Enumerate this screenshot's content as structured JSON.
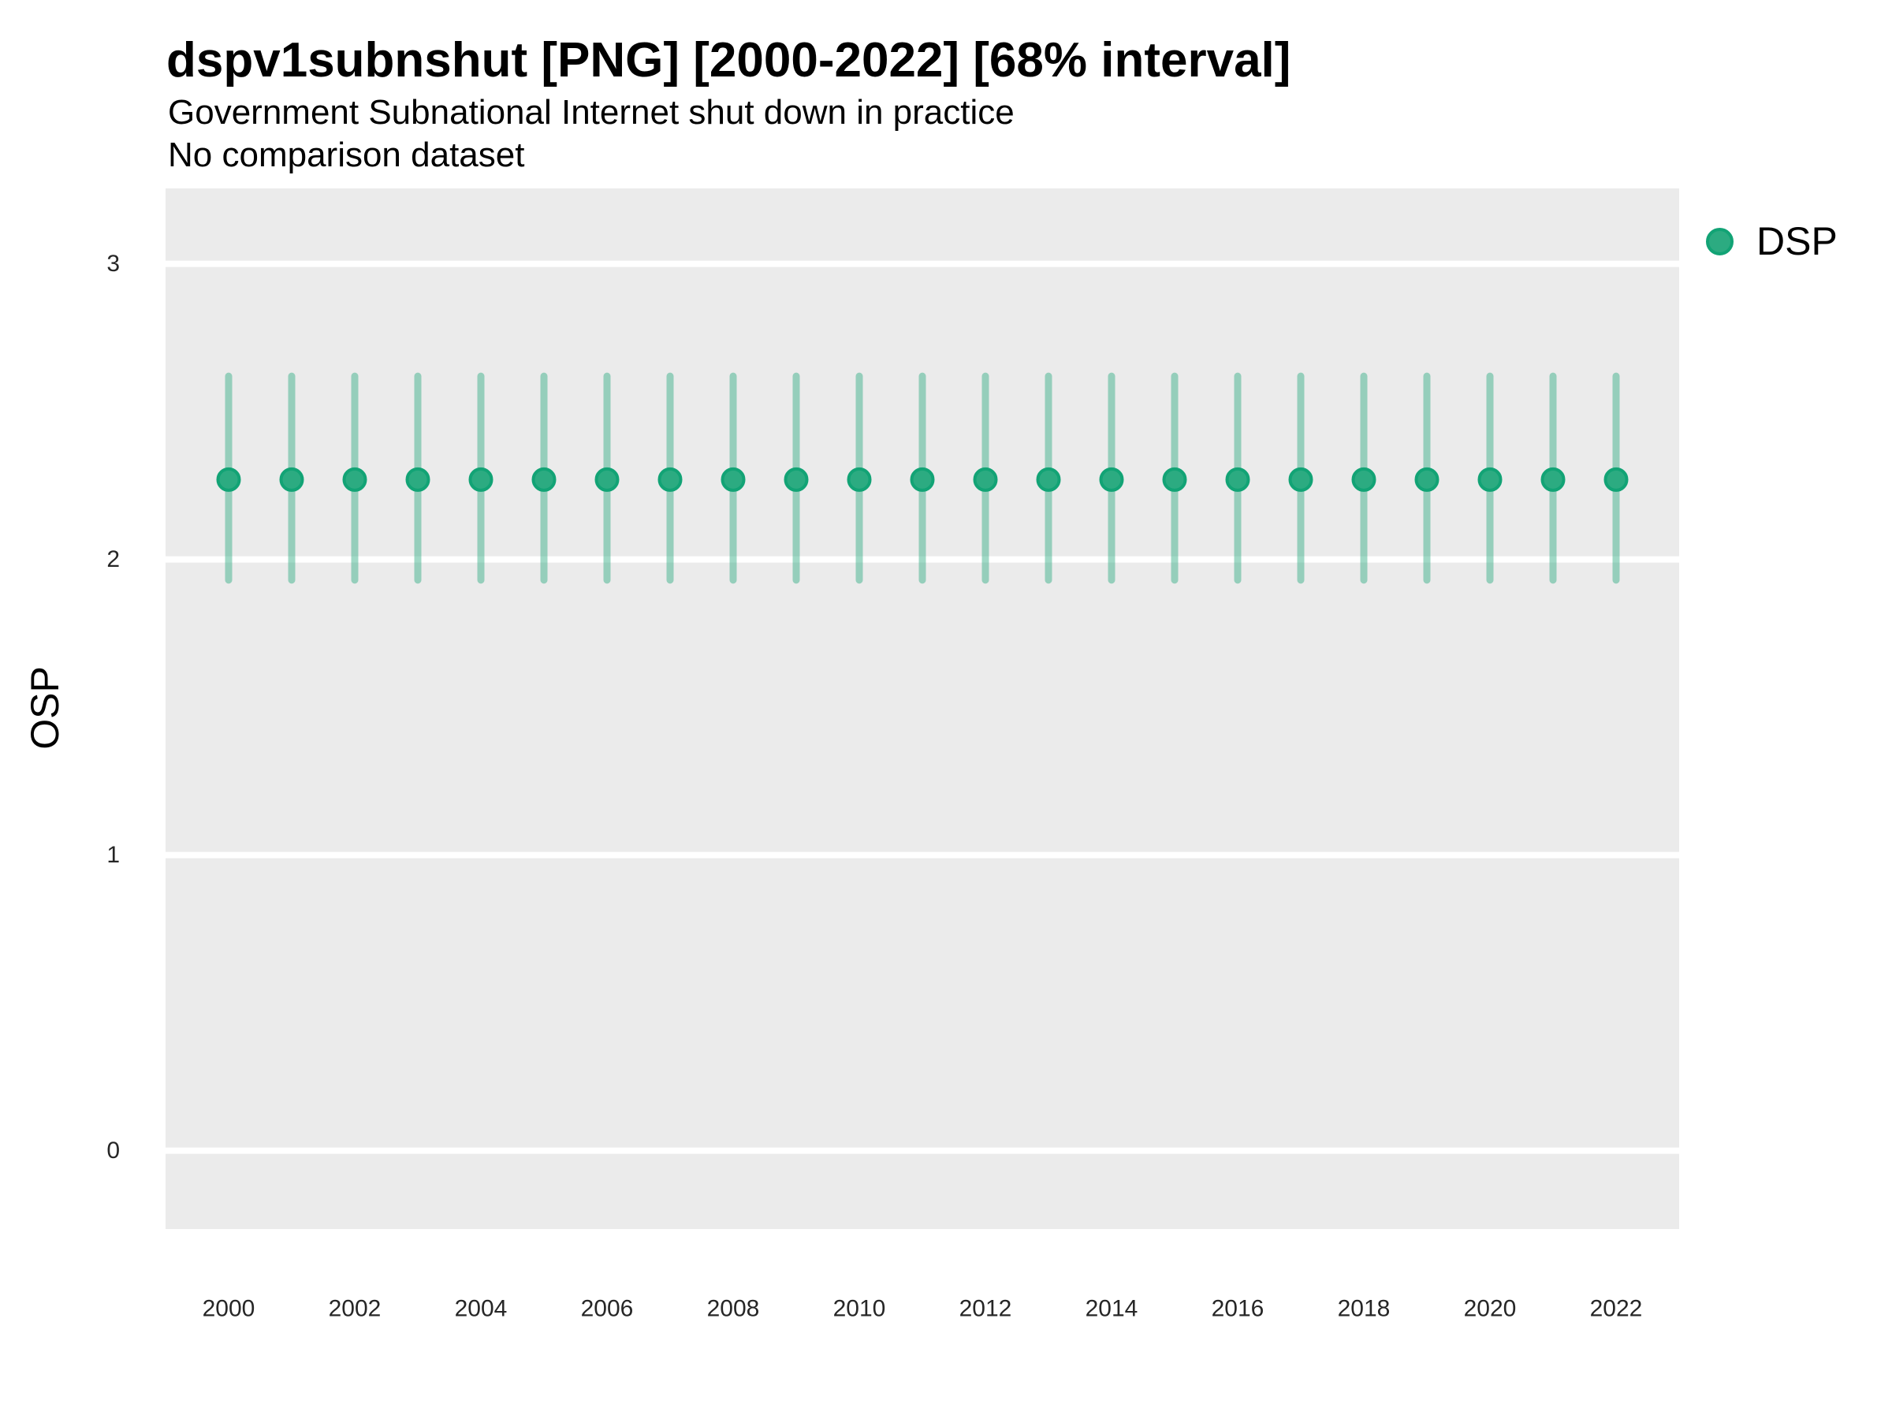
{
  "header": {
    "title": "dspv1subnshut [PNG] [2000-2022] [68% interval]",
    "subtitle": "Government Subnational Internet shut down in practice",
    "comparison_note": "No comparison dataset"
  },
  "y_axis": {
    "title": "OSP",
    "ticks": [
      {
        "value": 0,
        "label": "0"
      },
      {
        "value": 1,
        "label": "1"
      },
      {
        "value": 2,
        "label": "2"
      },
      {
        "value": 3,
        "label": "3"
      }
    ]
  },
  "x_axis": {
    "ticks": [
      {
        "value": 2000,
        "label": "2000"
      },
      {
        "value": 2002,
        "label": "2002"
      },
      {
        "value": 2004,
        "label": "2004"
      },
      {
        "value": 2006,
        "label": "2006"
      },
      {
        "value": 2008,
        "label": "2008"
      },
      {
        "value": 2010,
        "label": "2010"
      },
      {
        "value": 2012,
        "label": "2012"
      },
      {
        "value": 2014,
        "label": "2014"
      },
      {
        "value": 2016,
        "label": "2016"
      },
      {
        "value": 2018,
        "label": "2018"
      },
      {
        "value": 2020,
        "label": "2020"
      },
      {
        "value": 2022,
        "label": "2022"
      }
    ]
  },
  "legend": {
    "items": [
      {
        "label": "DSP",
        "color": "#2CAB81"
      }
    ]
  },
  "colors": {
    "accent": "#2CAB81",
    "accent_dark": "#12A375",
    "interval_bar": "rgba(44, 171, 129, 0.45)",
    "panel_bg": "#EBEBEB",
    "gridline": "#FFFFFF",
    "tick_text": "#262626",
    "text": "#000000"
  },
  "chart_data": {
    "type": "scatter",
    "variant": "pointrange",
    "title": "dspv1subnshut [PNG] [2000-2022] [68% interval]",
    "subtitle": "Government Subnational Internet shut down in practice",
    "note": "No comparison dataset",
    "interval": "68%",
    "xlabel": "",
    "ylabel": "OSP",
    "ylim": [
      -0.265,
      3.255
    ],
    "xlim": [
      1999,
      2023
    ],
    "grid": "major-horizontal-only",
    "legend_position": "right-top",
    "series": [
      {
        "name": "DSP",
        "points": [
          {
            "year": 2000,
            "estimate": 2.27,
            "lo": 1.93,
            "hi": 2.62
          },
          {
            "year": 2001,
            "estimate": 2.27,
            "lo": 1.93,
            "hi": 2.62
          },
          {
            "year": 2002,
            "estimate": 2.27,
            "lo": 1.93,
            "hi": 2.62
          },
          {
            "year": 2003,
            "estimate": 2.27,
            "lo": 1.93,
            "hi": 2.62
          },
          {
            "year": 2004,
            "estimate": 2.27,
            "lo": 1.93,
            "hi": 2.62
          },
          {
            "year": 2005,
            "estimate": 2.27,
            "lo": 1.93,
            "hi": 2.62
          },
          {
            "year": 2006,
            "estimate": 2.27,
            "lo": 1.93,
            "hi": 2.62
          },
          {
            "year": 2007,
            "estimate": 2.27,
            "lo": 1.93,
            "hi": 2.62
          },
          {
            "year": 2008,
            "estimate": 2.27,
            "lo": 1.93,
            "hi": 2.62
          },
          {
            "year": 2009,
            "estimate": 2.27,
            "lo": 1.93,
            "hi": 2.62
          },
          {
            "year": 2010,
            "estimate": 2.27,
            "lo": 1.93,
            "hi": 2.62
          },
          {
            "year": 2011,
            "estimate": 2.27,
            "lo": 1.93,
            "hi": 2.62
          },
          {
            "year": 2012,
            "estimate": 2.27,
            "lo": 1.93,
            "hi": 2.62
          },
          {
            "year": 2013,
            "estimate": 2.27,
            "lo": 1.93,
            "hi": 2.62
          },
          {
            "year": 2014,
            "estimate": 2.27,
            "lo": 1.93,
            "hi": 2.62
          },
          {
            "year": 2015,
            "estimate": 2.27,
            "lo": 1.93,
            "hi": 2.62
          },
          {
            "year": 2016,
            "estimate": 2.27,
            "lo": 1.93,
            "hi": 2.62
          },
          {
            "year": 2017,
            "estimate": 2.27,
            "lo": 1.93,
            "hi": 2.62
          },
          {
            "year": 2018,
            "estimate": 2.27,
            "lo": 1.93,
            "hi": 2.62
          },
          {
            "year": 2019,
            "estimate": 2.27,
            "lo": 1.93,
            "hi": 2.62
          },
          {
            "year": 2020,
            "estimate": 2.27,
            "lo": 1.93,
            "hi": 2.62
          },
          {
            "year": 2021,
            "estimate": 2.27,
            "lo": 1.93,
            "hi": 2.62
          },
          {
            "year": 2022,
            "estimate": 2.27,
            "lo": 1.93,
            "hi": 2.62
          }
        ]
      }
    ]
  }
}
